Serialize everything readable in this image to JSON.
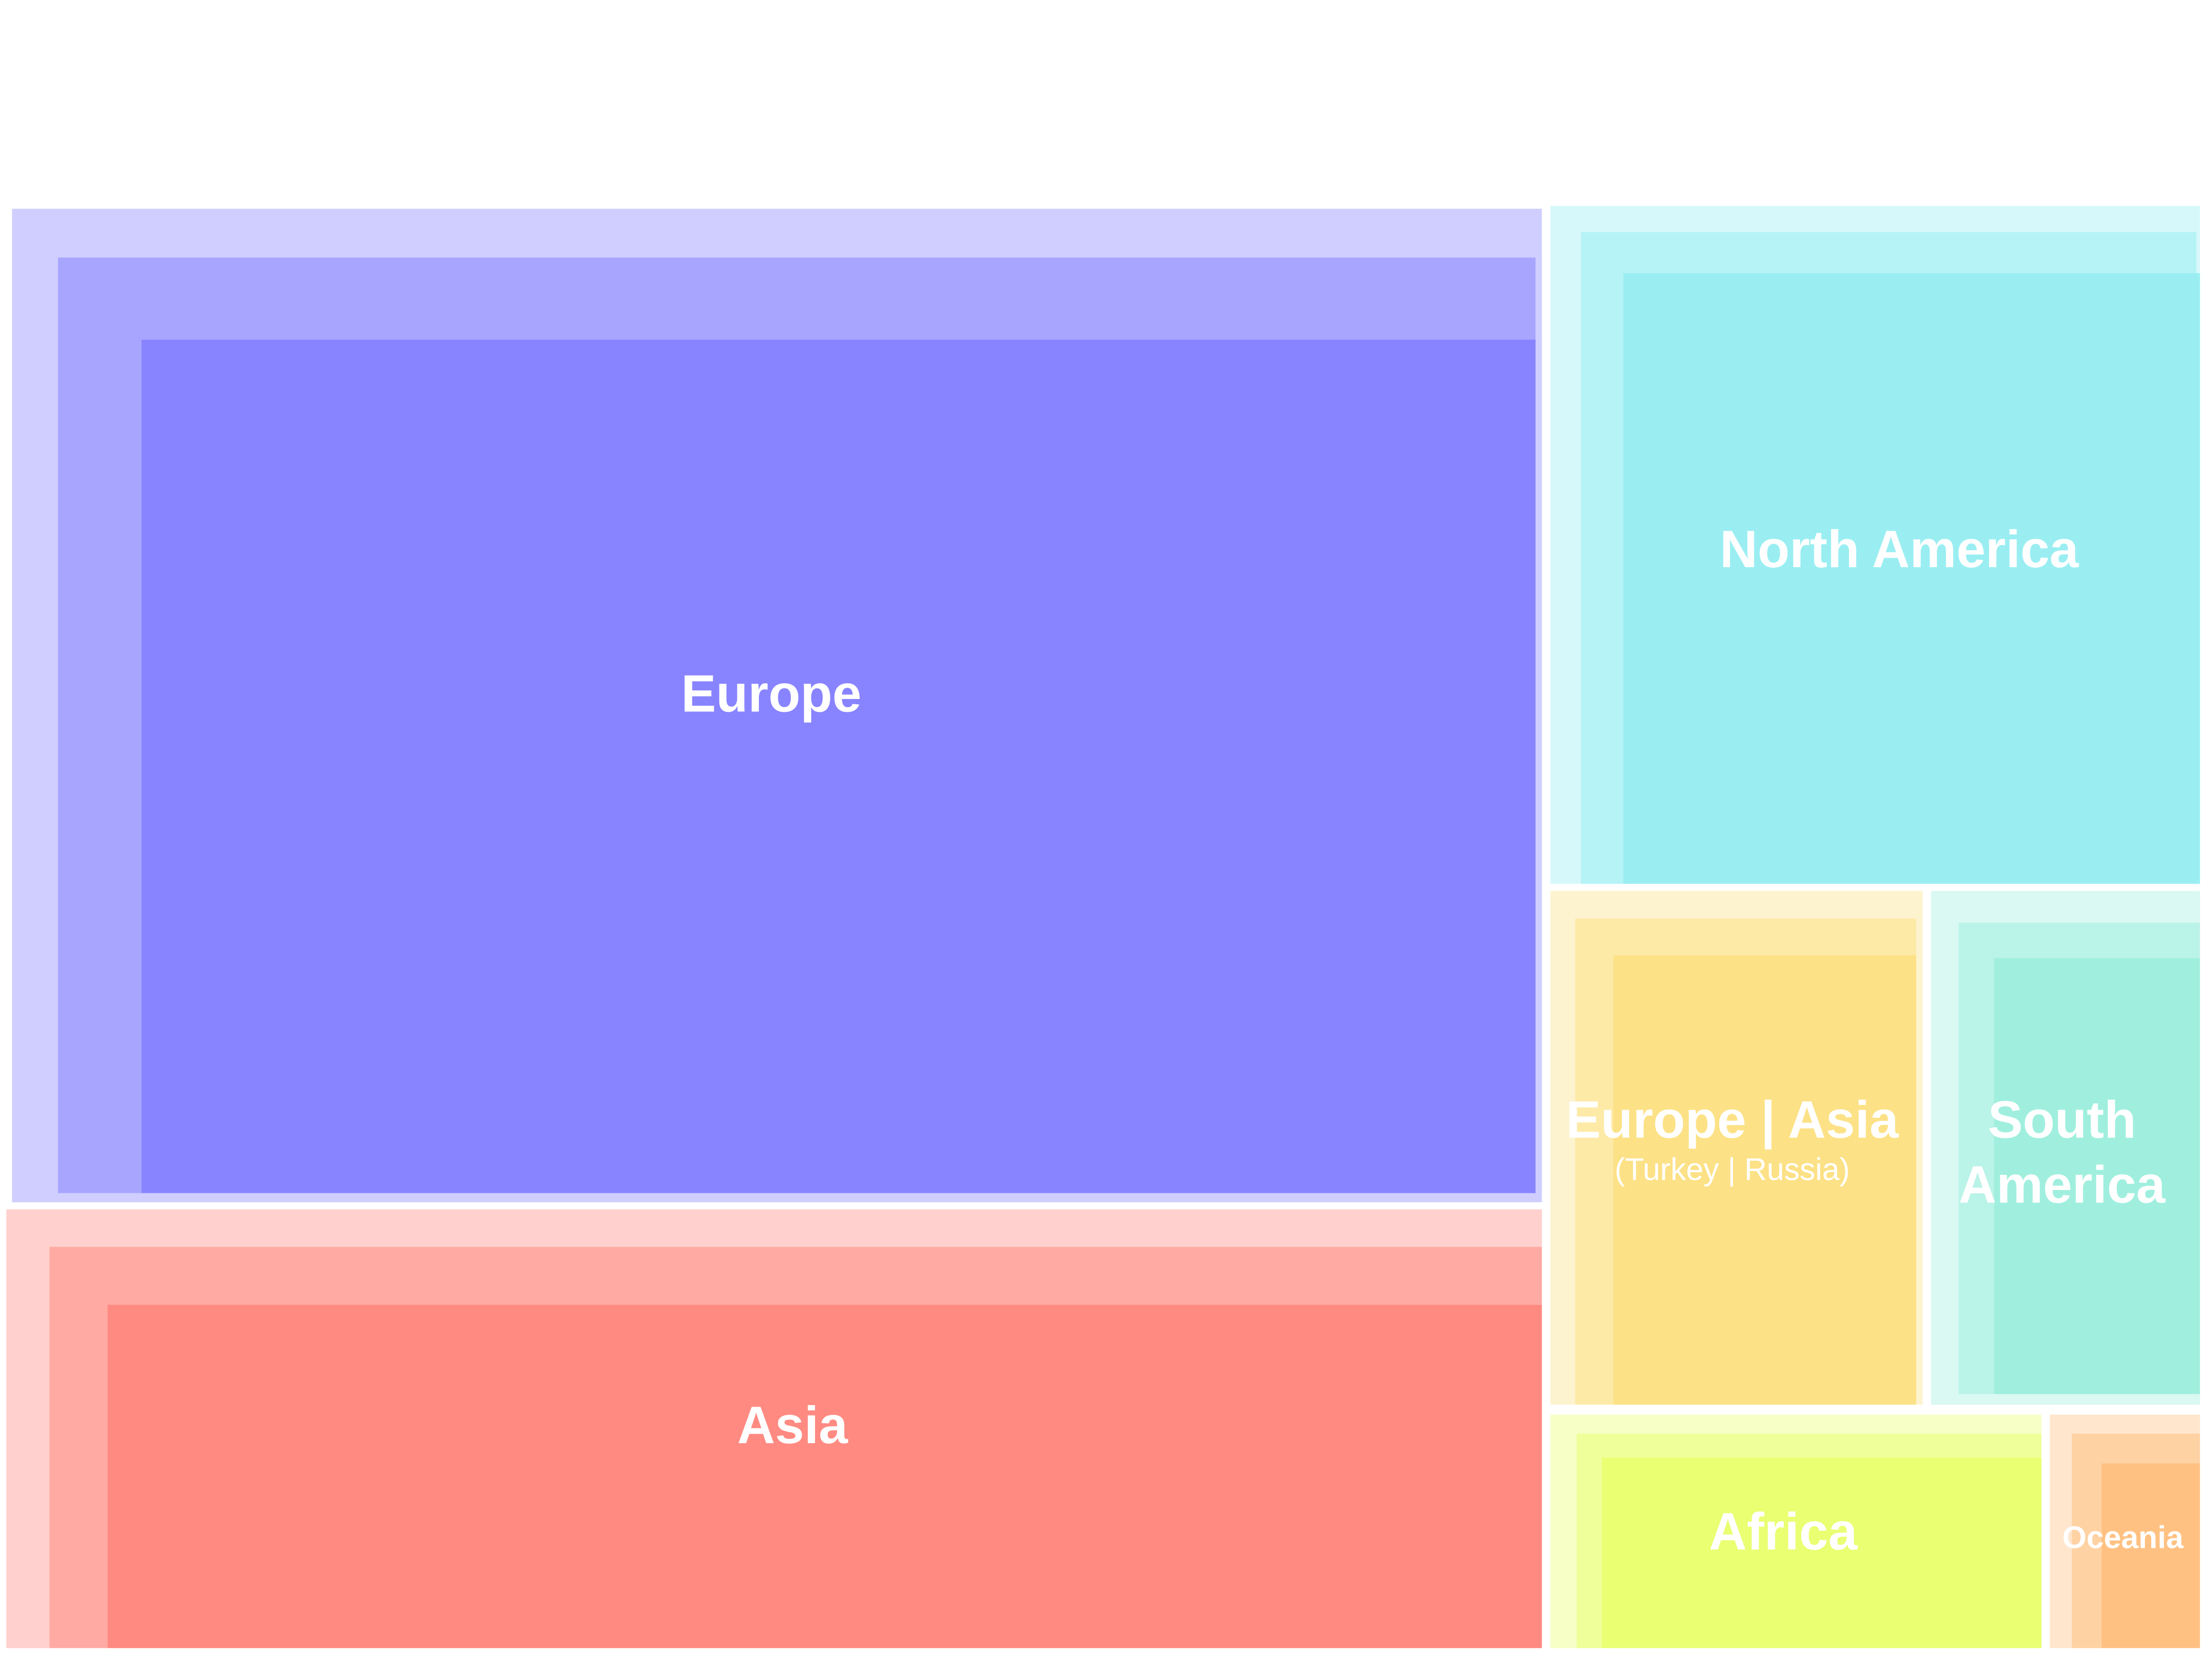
{
  "chart_data": {
    "type": "treemap",
    "regions": [
      {
        "id": "europe",
        "label": "Europe",
        "sublabel": "",
        "color": "#8884FF"
      },
      {
        "id": "north-america",
        "label": "North America",
        "sublabel": "",
        "color": "#9AEEF2"
      },
      {
        "id": "asia",
        "label": "Asia",
        "sublabel": "",
        "color": "#FF8A82"
      },
      {
        "id": "europe-asia",
        "label": "Europe | Asia",
        "sublabel": "(Turkey | Russia)",
        "color": "#FCE186"
      },
      {
        "id": "south-america",
        "label": "South America",
        "sublabel": "",
        "color": "#A0EFDE"
      },
      {
        "id": "africa",
        "label": "Africa",
        "sublabel": "",
        "color": "#EAFF72"
      },
      {
        "id": "oceania",
        "label": "Oceania",
        "sublabel": "",
        "color": "#FFC182"
      }
    ]
  }
}
